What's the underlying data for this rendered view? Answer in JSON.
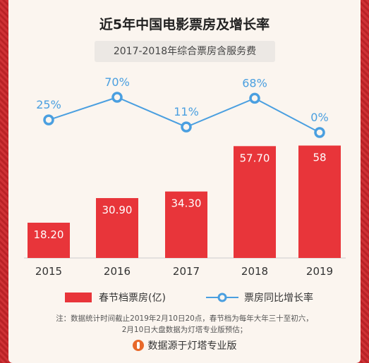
{
  "title": "近5年中国电影票房及增长率",
  "subtitle": "2017-2018年综合票房含服务费",
  "chart_data": {
    "type": "bar",
    "categories": [
      "2015",
      "2016",
      "2017",
      "2018",
      "2019"
    ],
    "series": [
      {
        "name": "春节档票房(亿)",
        "type": "bar",
        "values": [
          18.2,
          30.9,
          34.3,
          57.7,
          58
        ],
        "labels": [
          "18.20",
          "30.90",
          "34.30",
          "57.70",
          "58"
        ],
        "color": "#e8353a"
      },
      {
        "name": "票房同比增长率",
        "type": "line",
        "values": [
          25,
          70,
          11,
          68,
          0
        ],
        "labels": [
          "25%",
          "70%",
          "11%",
          "68%",
          "0%"
        ],
        "color": "#4a9fe0"
      }
    ]
  },
  "legend": {
    "bar_label": "春节档票房(亿)",
    "line_label": "票房同比增长率"
  },
  "note": {
    "line1": "注：数据统计时间截止2019年2月10日20点，春节档为每年大年三十至初六，",
    "line2": "2月10日大盘数据为灯塔专业版预估；"
  },
  "source": {
    "text": "数据源于灯塔专业版",
    "icon": "lighthouse-icon"
  }
}
